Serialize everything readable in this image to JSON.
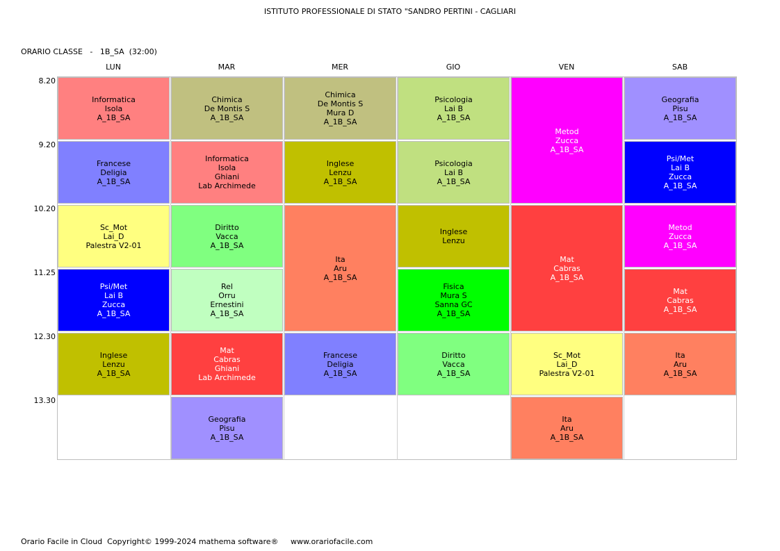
{
  "header": {
    "title": "ISTITUTO PROFESSIONALE DI STATO \"SANDRO PERTINI - CAGLIARI",
    "class_label": "ORARIO CLASSE   -   1B_SA  (32:00)"
  },
  "days": [
    "LUN",
    "MAR",
    "MER",
    "GIO",
    "VEN",
    "SAB"
  ],
  "times": [
    "8.20",
    "9.20",
    "10.20",
    "11.25",
    "12.30",
    "13.30"
  ],
  "colors": {
    "informatica": "#ff8080",
    "chimica": "#c0c080",
    "psicologia": "#c0e080",
    "metod": "#ff00ff",
    "geografia": "#a090ff",
    "francese": "#8080ff",
    "inglese": "#c0c000",
    "psimet": "#0000ff",
    "scmot": "#ffff80",
    "diritto": "#80ff80",
    "ita": "#ff8060",
    "mat": "#ff4040",
    "rel": "#c0ffc0",
    "fisica": "#00ff00"
  },
  "lessons": [
    {
      "day": 0,
      "slot": 0,
      "span": 1,
      "color": "#ff8080",
      "light": false,
      "lines": [
        "Informatica",
        "Isola",
        "A_1B_SA"
      ]
    },
    {
      "day": 0,
      "slot": 1,
      "span": 1,
      "color": "#8080ff",
      "light": false,
      "lines": [
        "Francese",
        "Deligia",
        "A_1B_SA"
      ]
    },
    {
      "day": 0,
      "slot": 2,
      "span": 1,
      "color": "#ffff80",
      "light": false,
      "lines": [
        "Sc_Mot",
        "Lai_D",
        "Palestra V2-01"
      ]
    },
    {
      "day": 0,
      "slot": 3,
      "span": 1,
      "color": "#0000ff",
      "light": true,
      "lines": [
        "Psi/Met",
        "Lai B",
        "Zucca",
        "A_1B_SA"
      ]
    },
    {
      "day": 0,
      "slot": 4,
      "span": 1,
      "color": "#c0c000",
      "light": false,
      "lines": [
        "Inglese",
        "Lenzu",
        "A_1B_SA"
      ]
    },
    {
      "day": 1,
      "slot": 0,
      "span": 1,
      "color": "#c0c080",
      "light": false,
      "lines": [
        "Chimica",
        "De Montis S",
        "A_1B_SA"
      ]
    },
    {
      "day": 1,
      "slot": 1,
      "span": 1,
      "color": "#ff8080",
      "light": false,
      "lines": [
        "Informatica",
        "Isola",
        "Ghiani",
        "Lab Archimede"
      ]
    },
    {
      "day": 1,
      "slot": 2,
      "span": 1,
      "color": "#80ff80",
      "light": false,
      "lines": [
        "Diritto",
        "Vacca",
        "A_1B_SA"
      ]
    },
    {
      "day": 1,
      "slot": 3,
      "span": 1,
      "color": "#c0ffc0",
      "light": false,
      "lines": [
        "Rel",
        "Orru",
        "Ernestini",
        "A_1B_SA"
      ]
    },
    {
      "day": 1,
      "slot": 4,
      "span": 1,
      "color": "#ff4040",
      "light": true,
      "lines": [
        "Mat",
        "Cabras",
        "Ghiani",
        "Lab Archimede"
      ]
    },
    {
      "day": 1,
      "slot": 5,
      "span": 1,
      "color": "#a090ff",
      "light": false,
      "lines": [
        "Geografia",
        "Pisu",
        "A_1B_SA"
      ]
    },
    {
      "day": 2,
      "slot": 0,
      "span": 1,
      "color": "#c0c080",
      "light": false,
      "lines": [
        "Chimica",
        "De Montis S",
        "Mura D",
        "A_1B_SA"
      ]
    },
    {
      "day": 2,
      "slot": 1,
      "span": 1,
      "color": "#c0c000",
      "light": false,
      "lines": [
        "Inglese",
        "Lenzu",
        "A_1B_SA"
      ]
    },
    {
      "day": 2,
      "slot": 2,
      "span": 2,
      "color": "#ff8060",
      "light": false,
      "lines": [
        "Ita",
        "Aru",
        "A_1B_SA"
      ]
    },
    {
      "day": 2,
      "slot": 4,
      "span": 1,
      "color": "#8080ff",
      "light": false,
      "lines": [
        "Francese",
        "Deligia",
        "A_1B_SA"
      ]
    },
    {
      "day": 3,
      "slot": 0,
      "span": 1,
      "color": "#c0e080",
      "light": false,
      "lines": [
        "Psicologia",
        "Lai B",
        "A_1B_SA"
      ]
    },
    {
      "day": 3,
      "slot": 1,
      "span": 1,
      "color": "#c0e080",
      "light": false,
      "lines": [
        "Psicologia",
        "Lai B",
        "A_1B_SA"
      ]
    },
    {
      "day": 3,
      "slot": 2,
      "span": 1,
      "color": "#c0c000",
      "light": false,
      "lines": [
        "Inglese",
        "Lenzu"
      ]
    },
    {
      "day": 3,
      "slot": 3,
      "span": 1,
      "color": "#00ff00",
      "light": false,
      "lines": [
        "Fisica",
        "Mura S",
        "Sanna GC",
        "A_1B_SA"
      ]
    },
    {
      "day": 3,
      "slot": 4,
      "span": 1,
      "color": "#80ff80",
      "light": false,
      "lines": [
        "Diritto",
        "Vacca",
        "A_1B_SA"
      ]
    },
    {
      "day": 4,
      "slot": 0,
      "span": 2,
      "color": "#ff00ff",
      "light": true,
      "lines": [
        "Metod",
        "Zucca",
        "A_1B_SA"
      ]
    },
    {
      "day": 4,
      "slot": 2,
      "span": 2,
      "color": "#ff4040",
      "light": true,
      "lines": [
        "Mat",
        "Cabras",
        "A_1B_SA"
      ]
    },
    {
      "day": 4,
      "slot": 4,
      "span": 1,
      "color": "#ffff80",
      "light": false,
      "lines": [
        "Sc_Mot",
        "Lai_D",
        "Palestra V2-01"
      ]
    },
    {
      "day": 4,
      "slot": 5,
      "span": 1,
      "color": "#ff8060",
      "light": false,
      "lines": [
        "Ita",
        "Aru",
        "A_1B_SA"
      ]
    },
    {
      "day": 5,
      "slot": 0,
      "span": 1,
      "color": "#a090ff",
      "light": false,
      "lines": [
        "Geografia",
        "Pisu",
        "A_1B_SA"
      ]
    },
    {
      "day": 5,
      "slot": 1,
      "span": 1,
      "color": "#0000ff",
      "light": true,
      "lines": [
        "Psi/Met",
        "Lai B",
        "Zucca",
        "A_1B_SA"
      ]
    },
    {
      "day": 5,
      "slot": 2,
      "span": 1,
      "color": "#ff00ff",
      "light": true,
      "lines": [
        "Metod",
        "Zucca",
        "A_1B_SA"
      ]
    },
    {
      "day": 5,
      "slot": 3,
      "span": 1,
      "color": "#ff4040",
      "light": true,
      "lines": [
        "Mat",
        "Cabras",
        "A_1B_SA"
      ]
    },
    {
      "day": 5,
      "slot": 4,
      "span": 1,
      "color": "#ff8060",
      "light": false,
      "lines": [
        "Ita",
        "Aru",
        "A_1B_SA"
      ]
    }
  ],
  "footer": {
    "text": "Orario Facile in Cloud  Copyright© 1999-2024 mathema software®     www.orariofacile.com"
  }
}
